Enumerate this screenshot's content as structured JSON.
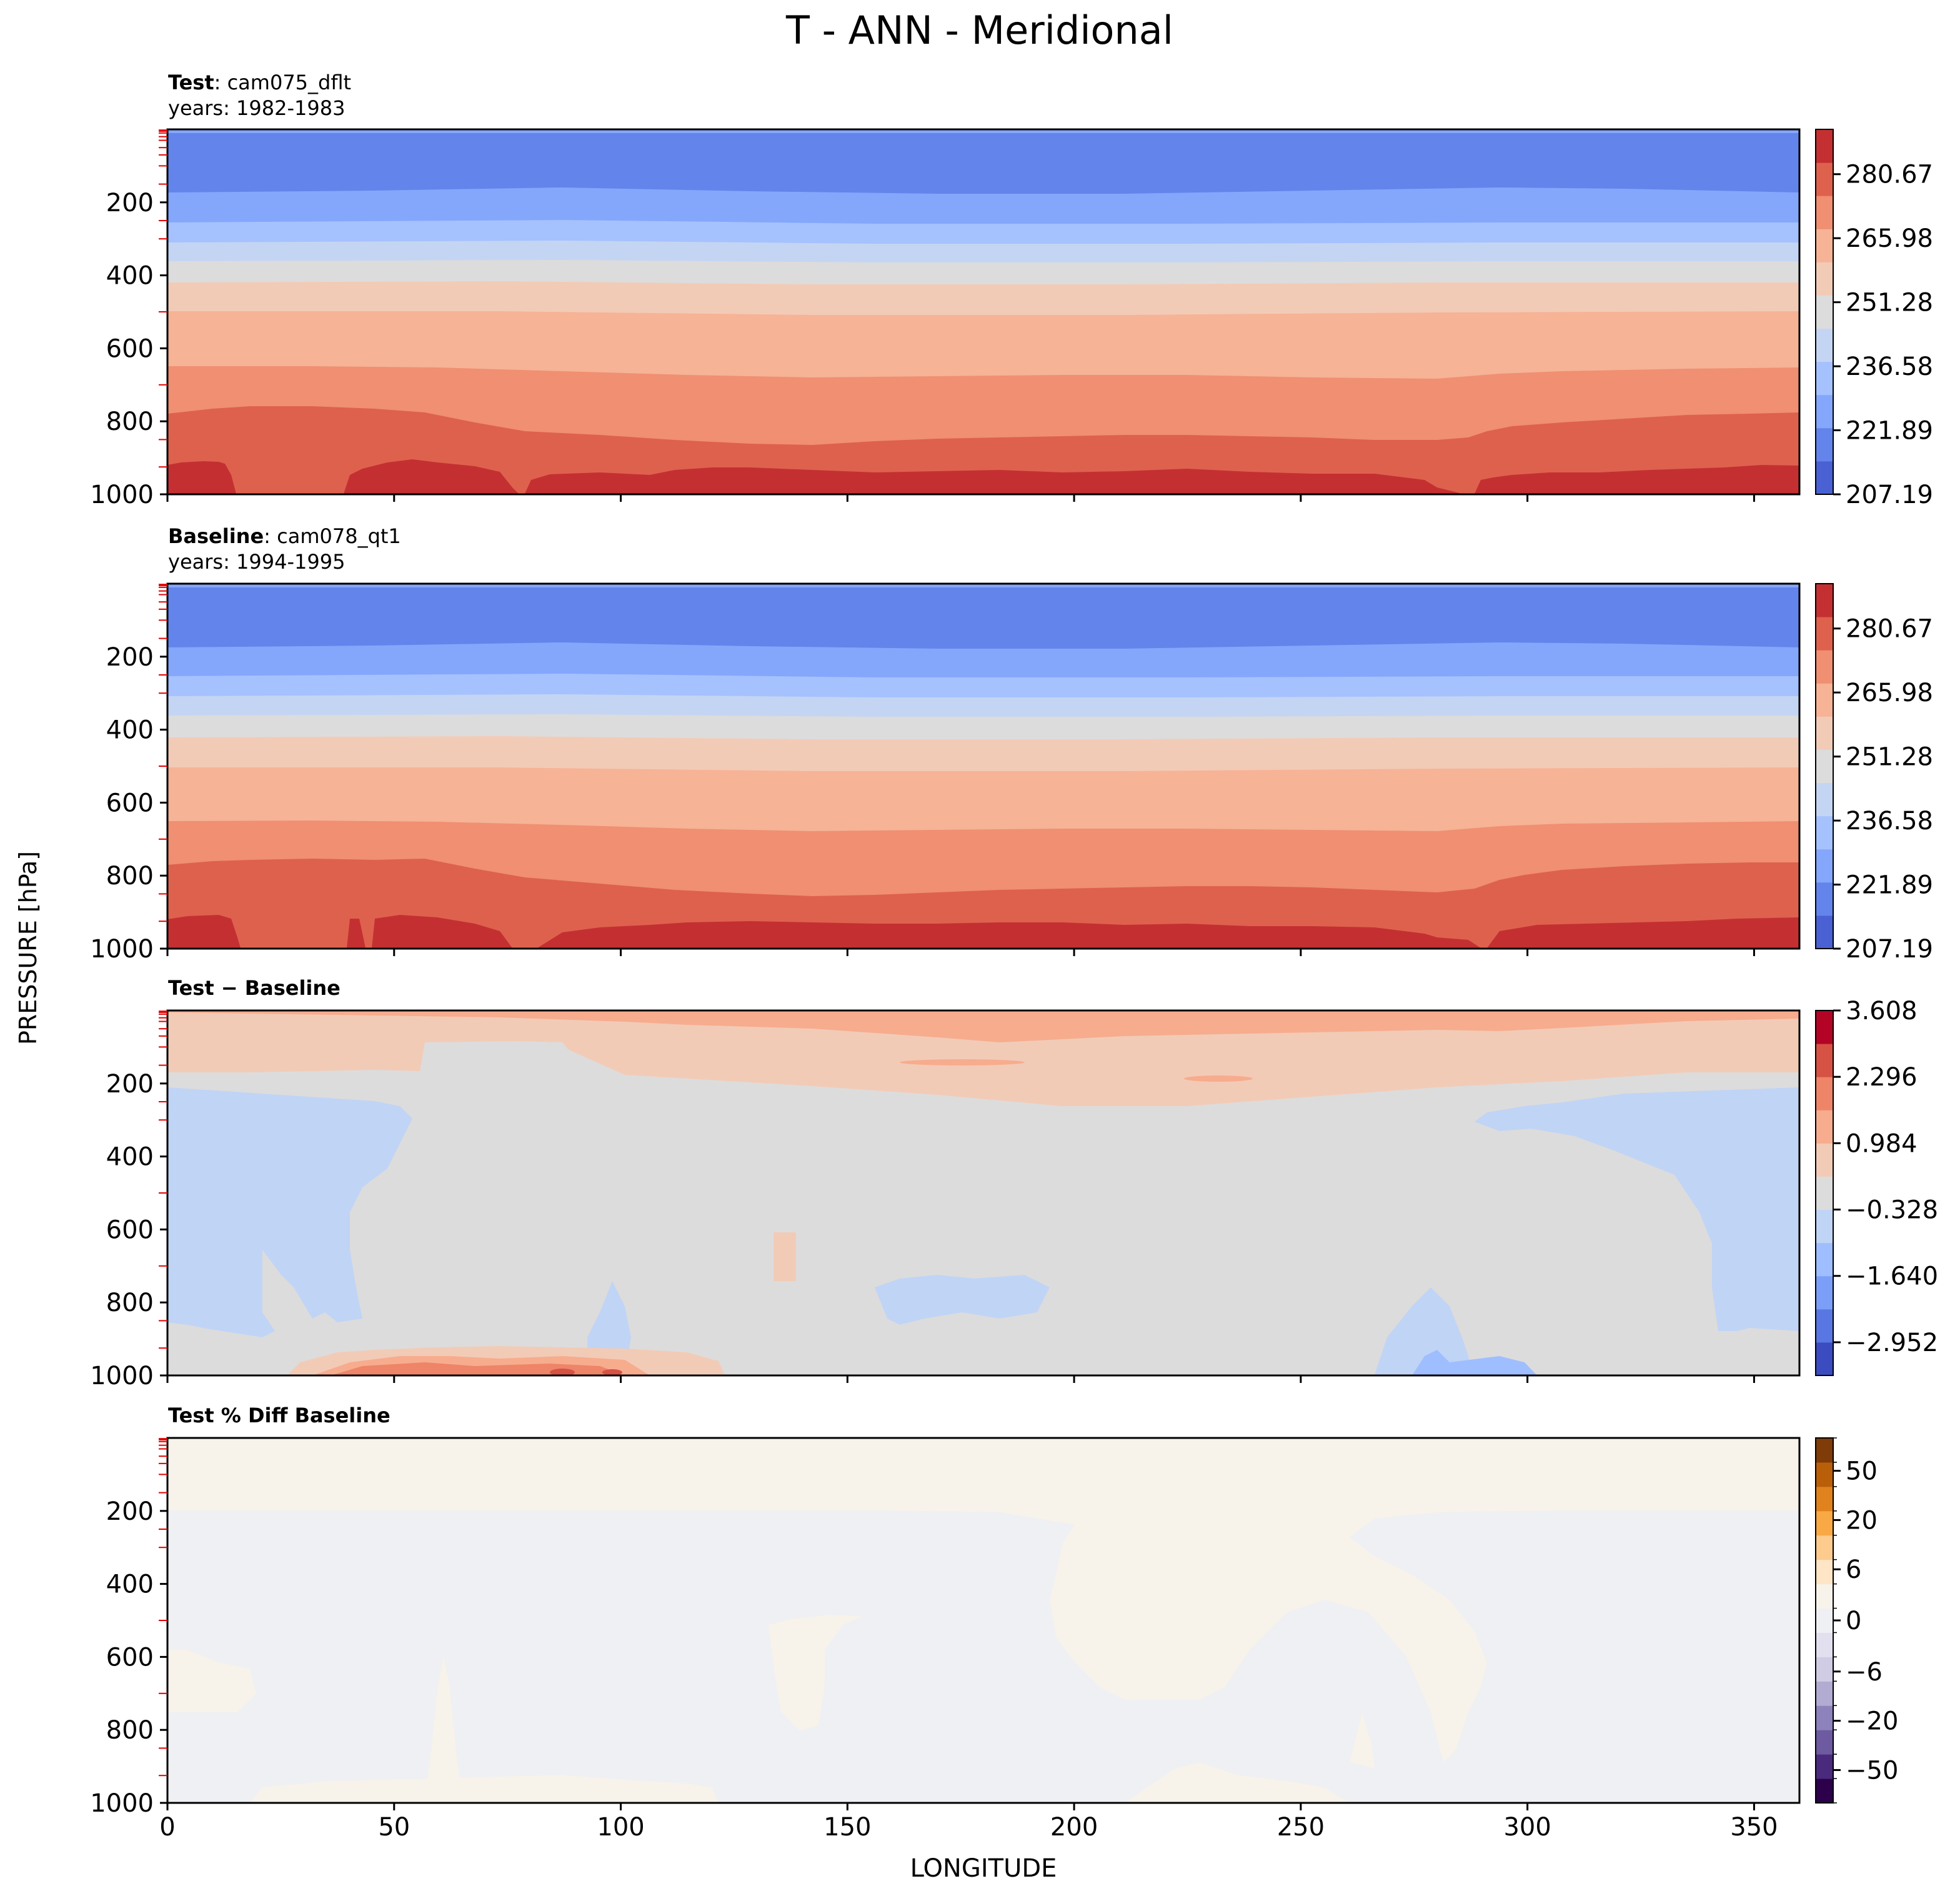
{
  "chart_data": {
    "type": "contour",
    "suptitle": "T - ANN - Meridional",
    "xlabel": "LONGITUDE",
    "ylabel": "PRESSURE [hPa]",
    "xlim": [
      0,
      360
    ],
    "ylim": [
      1000,
      0
    ],
    "xticks": [
      0,
      50,
      100,
      150,
      200,
      250,
      300,
      350
    ],
    "xtick_labels": [
      "0",
      "50",
      "100",
      "150",
      "200",
      "250",
      "300",
      "350"
    ],
    "yticks": [
      200,
      400,
      600,
      800,
      1000
    ],
    "ytick_labels": [
      "200",
      "400",
      "600",
      "800",
      "1000"
    ],
    "minor_yticks_red": [
      2,
      5,
      10,
      20,
      30,
      50,
      70,
      100,
      150,
      250,
      300,
      500,
      700,
      850,
      925
    ],
    "panels": [
      {
        "id": "test",
        "title_bold": "Test",
        "title_rest": ": cam075_dflt",
        "subtitle": "years: 1982-1983",
        "colormap": "coolwarm",
        "colorbar_ticks": [
          207.19,
          221.89,
          236.58,
          251.28,
          265.98,
          280.67
        ],
        "colorbar_tick_labels": [
          "207.19",
          "221.89",
          "236.58",
          "251.28",
          "265.98",
          "280.67"
        ],
        "colors": [
          "#4961d2",
          "#6384eb",
          "#84a7fc",
          "#a5c2fe",
          "#c4d5f3",
          "#dddcdc",
          "#f2cbb7",
          "#f6b396",
          "#f08f71",
          "#de614d",
          "#c43032"
        ],
        "band_bounds_hPa": [
          5,
          30,
          180,
          262,
          315,
          380,
          425,
          490,
          580,
          680,
          800,
          950
        ]
      },
      {
        "id": "baseline",
        "title_bold": "Baseline",
        "title_rest": ": cam078_qt1",
        "subtitle": "years: 1994-1995",
        "colormap": "coolwarm",
        "colorbar_ticks": [
          207.19,
          221.89,
          236.58,
          251.28,
          265.98,
          280.67
        ],
        "colorbar_tick_labels": [
          "207.19",
          "221.89",
          "236.58",
          "251.28",
          "265.98",
          "280.67"
        ],
        "colors": [
          "#4961d2",
          "#6384eb",
          "#84a7fc",
          "#a5c2fe",
          "#c4d5f3",
          "#dddcdc",
          "#f2cbb7",
          "#f6b396",
          "#f08f71",
          "#de614d",
          "#c43032"
        ],
        "band_bounds_hPa": [
          5,
          30,
          180,
          262,
          315,
          380,
          425,
          490,
          580,
          680,
          800,
          950
        ]
      },
      {
        "id": "diff",
        "title_bold": "Test − Baseline",
        "title_rest": "",
        "subtitle": "",
        "colormap": "coolwarm",
        "colorbar_ticks": [
          -2.952,
          -1.64,
          -0.328,
          0.984,
          2.296,
          3.608
        ],
        "colorbar_tick_labels": [
          "−2.952",
          "−1.640",
          "−0.328",
          "0.984",
          "2.296",
          "3.608"
        ],
        "colors": [
          "#3b4cc0",
          "#5977e3",
          "#7b9ff9",
          "#9ebeff",
          "#c0d4f5",
          "#dddcdc",
          "#f2cbb7",
          "#f7ac8e",
          "#ee8468",
          "#d65244",
          "#b40426"
        ]
      },
      {
        "id": "pctdiff",
        "title_bold": "Test % Diff Baseline",
        "title_rest": "",
        "subtitle": "",
        "colormap": "PuOr_r",
        "colorbar_ticks": [
          -50,
          -20,
          -6,
          0,
          6,
          20,
          50
        ],
        "colorbar_tick_labels": [
          "−50",
          "−20",
          "−6",
          "0",
          "6",
          "20",
          "50"
        ],
        "colors": [
          "#2d004b",
          "#4a2a7d",
          "#6d5aa1",
          "#8d82bb",
          "#b2abd2",
          "#cfcce4",
          "#e2e0ee",
          "#eff0f4",
          "#f7f2ea",
          "#fde5c6",
          "#fdcb8e",
          "#f9a846",
          "#e0821d",
          "#b95f09",
          "#7f3b08"
        ]
      }
    ]
  }
}
